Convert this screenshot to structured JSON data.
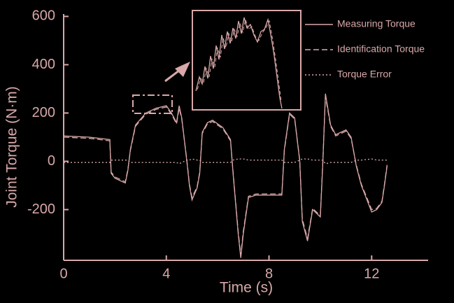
{
  "chart_data": {
    "type": "line",
    "xlabel": "Time (s)",
    "ylabel": "Joint Torque (N·m)",
    "x": [
      0,
      1,
      1.8,
      1.85,
      2,
      2.4,
      2.5,
      2.6,
      2.8,
      3.2,
      3.6,
      4,
      4.2,
      4.4,
      4.5,
      4.6,
      4.8,
      4.9,
      5,
      5.2,
      5.3,
      5.4,
      5.6,
      5.8,
      6.2,
      6.5,
      6.6,
      6.8,
      6.9,
      7,
      7.2,
      7.5,
      8,
      8.5,
      8.6,
      8.8,
      9,
      9.2,
      9.3,
      9.5,
      9.7,
      10,
      10.1,
      10.2,
      10.4,
      10.6,
      11,
      11.2,
      11.4,
      11.6,
      12,
      12.2,
      12.4,
      12.5,
      12.6
    ],
    "series": [
      {
        "name": "Measuring Torque",
        "color": "#d9a8a8",
        "linestyle": "solid",
        "values": [
          105,
          100,
          90,
          -50,
          -70,
          -90,
          -40,
          50,
          150,
          200,
          220,
          230,
          200,
          160,
          230,
          180,
          0,
          -100,
          -160,
          -110,
          -50,
          120,
          160,
          170,
          140,
          90,
          -50,
          -300,
          -400,
          -300,
          -150,
          -140,
          -140,
          -140,
          50,
          200,
          180,
          0,
          -250,
          -330,
          -200,
          -230,
          0,
          280,
          150,
          110,
          130,
          100,
          -20,
          -100,
          -210,
          -200,
          -170,
          -100,
          -20
        ]
      },
      {
        "name": "Identification Torque",
        "color": "#d9a8a8",
        "linestyle": "dashed",
        "values": [
          100,
          95,
          85,
          -45,
          -65,
          -85,
          -35,
          45,
          145,
          195,
          215,
          225,
          195,
          155,
          220,
          175,
          5,
          -95,
          -150,
          -105,
          -45,
          115,
          155,
          165,
          135,
          85,
          -45,
          -290,
          -390,
          -290,
          -145,
          -135,
          -135,
          -135,
          45,
          195,
          175,
          5,
          -240,
          -320,
          -195,
          -225,
          5,
          270,
          145,
          105,
          125,
          95,
          -15,
          -95,
          -200,
          -195,
          -165,
          -95,
          -15
        ]
      },
      {
        "name": "Torque Error",
        "color": "#d9a8a8",
        "linestyle": "dotted",
        "values": [
          -5,
          -5,
          -5,
          5,
          5,
          5,
          5,
          -5,
          -5,
          -5,
          -5,
          -5,
          -5,
          -5,
          -10,
          -5,
          5,
          5,
          10,
          5,
          5,
          -5,
          -5,
          -5,
          -5,
          -5,
          5,
          10,
          10,
          10,
          5,
          5,
          5,
          5,
          -5,
          -5,
          -5,
          5,
          10,
          10,
          5,
          5,
          5,
          -10,
          -5,
          -5,
          -5,
          -5,
          5,
          5,
          10,
          5,
          5,
          5,
          5
        ]
      }
    ],
    "xlim": [
      0,
      14.2
    ],
    "xticks": [
      0,
      4,
      8,
      12
    ],
    "ylim": [
      -410,
      610
    ],
    "yticks": [
      -200,
      0,
      200,
      400,
      600
    ],
    "legend": "upper right"
  }
}
